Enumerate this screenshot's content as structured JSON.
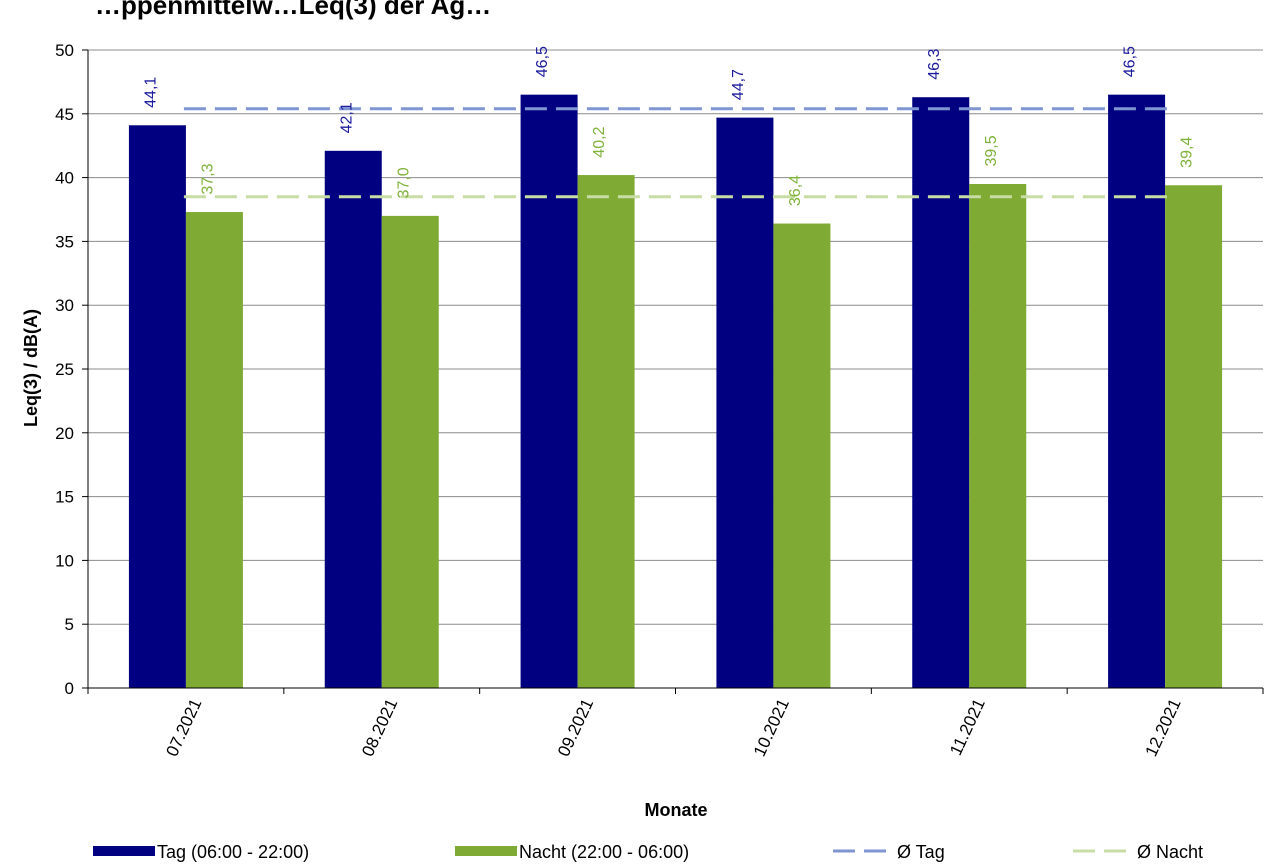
{
  "chart_data": {
    "type": "bar",
    "title": "…ppenmittelw…Leq(3) der Ag…",
    "xlabel": "Monate",
    "ylabel": "Leq(3) / dB(A)",
    "ylim": [
      0,
      50
    ],
    "yticks": [
      0,
      5,
      10,
      15,
      20,
      25,
      30,
      35,
      40,
      45,
      50
    ],
    "grid": true,
    "legend_position": "bottom",
    "categories": [
      "07.2021",
      "08.2021",
      "09.2021",
      "10.2021",
      "11.2021",
      "12.2021"
    ],
    "series": [
      {
        "name": "Tag (06:00 - 22:00)",
        "color": "#000080",
        "values": [
          44.1,
          42.1,
          46.5,
          44.7,
          46.3,
          46.5
        ],
        "labels": [
          "44,1",
          "42,1",
          "46,5",
          "44,7",
          "46,3",
          "46,5"
        ]
      },
      {
        "name": "Nacht (22:00 - 06:00)",
        "color": "#7FAA34",
        "values": [
          37.3,
          37.0,
          40.2,
          36.4,
          39.5,
          39.4
        ],
        "labels": [
          "37,3",
          "37,0",
          "40,2",
          "36,4",
          "39,5",
          "39,4"
        ]
      }
    ],
    "reference_lines": [
      {
        "name": "Ø Tag",
        "value": 45.4,
        "color": "#8096D2",
        "style": "dashed"
      },
      {
        "name": "Ø Nacht",
        "value": 38.5,
        "color": "#C8DCA5",
        "style": "dashed"
      }
    ],
    "label_colors": {
      "Tag": "#1C1C9C",
      "Nacht": "#7FB23A"
    }
  }
}
